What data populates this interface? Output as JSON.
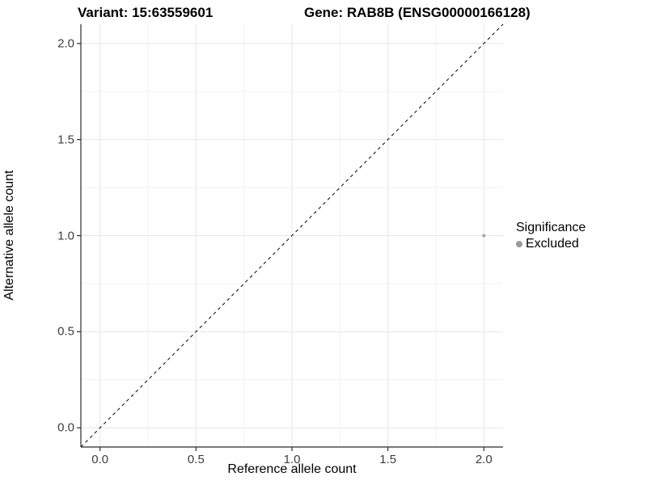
{
  "figure": {
    "title_left": "Variant: 15:63559601",
    "title_right": "Gene: RAB8B (ENSG00000166128)"
  },
  "chart_data": {
    "type": "scatter",
    "title": "Variant: 15:63559601   Gene: RAB8B (ENSG00000166128)",
    "xlabel": "Reference allele count",
    "ylabel": "Alternative allele count",
    "xlim": [
      -0.1,
      2.1
    ],
    "ylim": [
      -0.1,
      2.1
    ],
    "x_ticks": [
      0.0,
      0.5,
      1.0,
      1.5,
      2.0
    ],
    "y_ticks": [
      0.0,
      0.5,
      1.0,
      1.5,
      2.0
    ],
    "x_minor_ticks": [
      0.25,
      0.75,
      1.25,
      1.75
    ],
    "y_minor_ticks": [
      0.25,
      0.75,
      1.25,
      1.75
    ],
    "grid": true,
    "series": [
      {
        "name": "Excluded",
        "points": [
          {
            "x": 2.0,
            "y": 1.0
          }
        ],
        "color": "#a5a5a5",
        "point_radius": 2
      }
    ],
    "reference_line": {
      "type": "identity",
      "style": "dashed",
      "color": "#000000"
    },
    "legend": {
      "title": "Significance",
      "position": "right",
      "items": [
        {
          "label": "Excluded",
          "color": "#999999"
        }
      ]
    }
  },
  "colors": {
    "background": "#ffffff",
    "grid_major": "#e6e6e6",
    "grid_minor": "#f2f2f2",
    "axis_line": "#2b2b2b",
    "tick_mark": "#2b2b2b",
    "tick_label": "#3d3d3d"
  }
}
